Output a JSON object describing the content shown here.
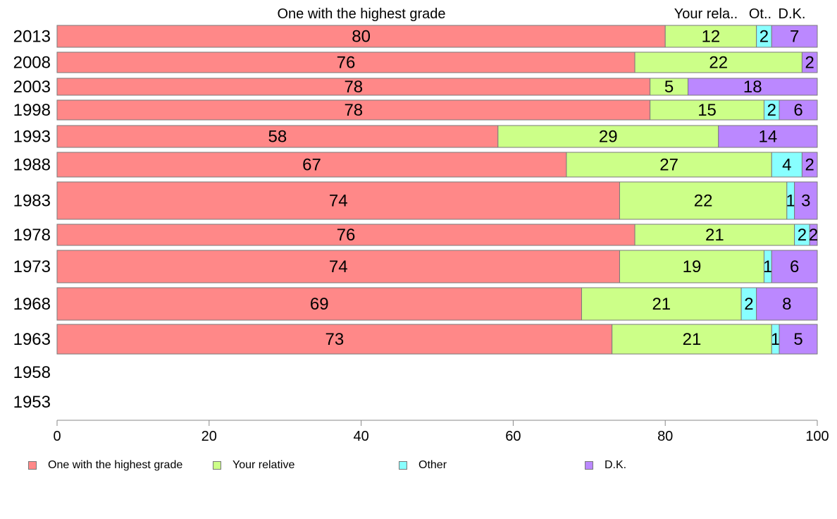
{
  "chart_data": {
    "type": "bar",
    "orientation": "horizontal",
    "stacked": true,
    "categories": [
      "2013",
      "2008",
      "2003",
      "1998",
      "1993",
      "1988",
      "1983",
      "1978",
      "1973",
      "1968",
      "1963",
      "1958",
      "1953"
    ],
    "series": [
      {
        "name": "One with the highest grade",
        "header": "One with the highest grade",
        "color": "#ff8888",
        "values": [
          80,
          76,
          78,
          78,
          58,
          67,
          74,
          76,
          74,
          69,
          73,
          null,
          null
        ]
      },
      {
        "name": "Your relative",
        "header": "Your rela..",
        "color": "#ccff88",
        "values": [
          12,
          22,
          5,
          15,
          29,
          27,
          22,
          21,
          19,
          21,
          21,
          null,
          null
        ]
      },
      {
        "name": "Other",
        "header": "Ot..",
        "color": "#88ffff",
        "values": [
          2,
          0,
          0,
          2,
          0,
          4,
          1,
          2,
          1,
          2,
          1,
          null,
          null
        ]
      },
      {
        "name": "D.K.",
        "header": "D.K.",
        "color": "#bb88ff",
        "values": [
          7,
          2,
          18,
          6,
          14,
          2,
          3,
          2,
          6,
          8,
          5,
          null,
          null
        ]
      }
    ],
    "xlim": [
      0,
      100
    ],
    "xticks": [
      0,
      20,
      40,
      60,
      80,
      100
    ],
    "grid": false,
    "legend_position": "bottom"
  }
}
